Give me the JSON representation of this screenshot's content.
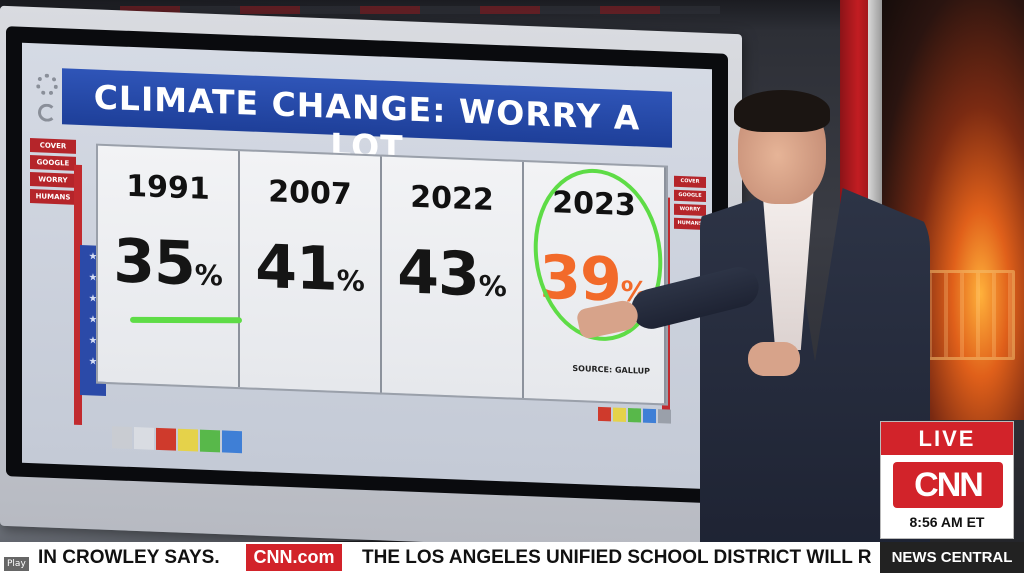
{
  "board": {
    "title": "CLIMATE CHANGE: WORRY A LOT",
    "left_tabs": [
      "COVER",
      "GOOGLE",
      "WORRY",
      "HUMANS"
    ],
    "right_tabs": [
      "COVER",
      "GOOGLE",
      "WORRY",
      "HUMANS"
    ],
    "source": "SOURCE: GALLUP",
    "stars": [
      "★",
      "★",
      "★",
      "★",
      "★",
      "★"
    ],
    "swatch_colors": [
      "#c9ccd2",
      "#d9dce2",
      "#cf3a2c",
      "#e5d24a",
      "#58b84a",
      "#3f7fd6"
    ],
    "swatch_colors_small": [
      "#cf3a2c",
      "#e5d24a",
      "#58b84a",
      "#3f7fd6",
      "#9aa0aa"
    ],
    "highlight_color": "#f26a2a",
    "marker_color": "#5edc46",
    "columns": [
      {
        "year": "1991",
        "value": "35",
        "unit": "%"
      },
      {
        "year": "2007",
        "value": "41",
        "unit": "%"
      },
      {
        "year": "2022",
        "value": "43",
        "unit": "%"
      },
      {
        "year": "2023",
        "value": "39",
        "unit": "%"
      }
    ]
  },
  "overlay": {
    "live": "LIVE",
    "network": "CNN",
    "time": "8:56 AM ET",
    "ticker_left": "IN CROWLEY SAYS.",
    "ticker_brand": "CNN.com",
    "ticker_right": "THE LOS ANGELES UNIFIED SCHOOL DISTRICT WILL R",
    "show": "NEWS CENTRAL",
    "play": "Play",
    "brand_color": "#d2232a"
  }
}
